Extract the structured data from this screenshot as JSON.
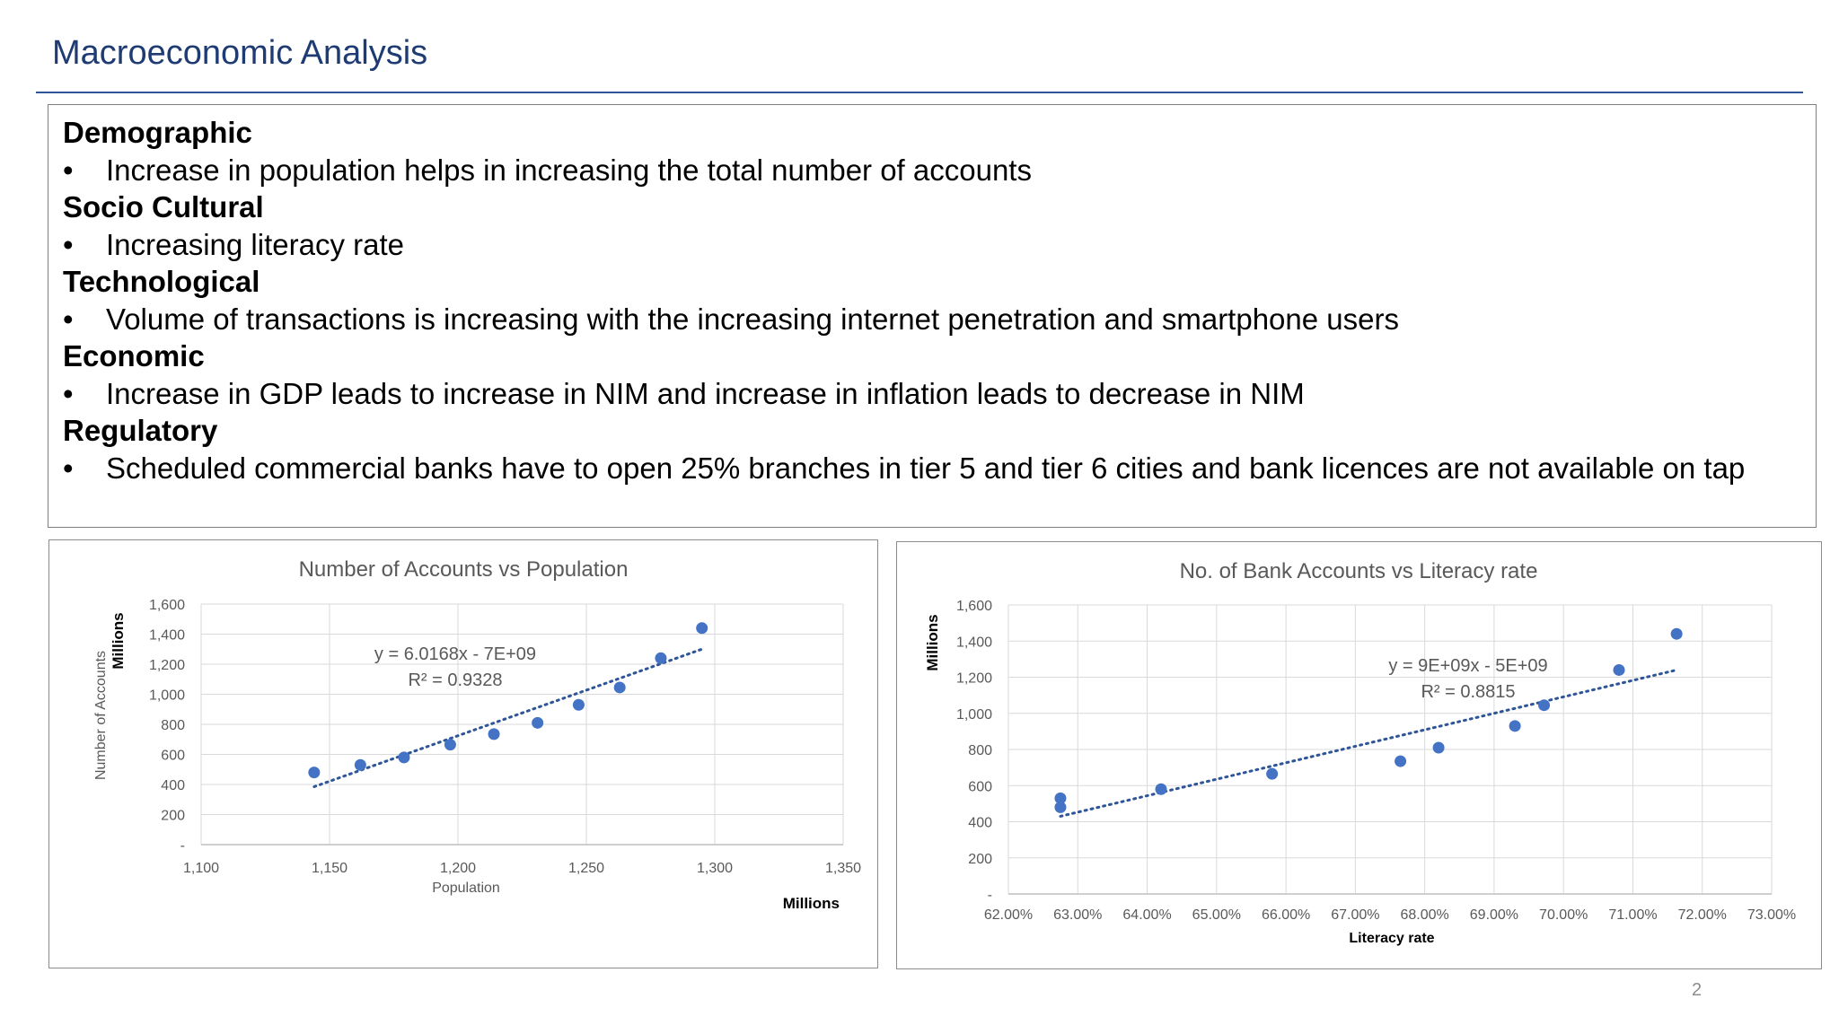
{
  "slide": {
    "title": "Macroeconomic Analysis",
    "page_number": "2",
    "accent_color": "#1f3b73",
    "marker_color": "#4472c4"
  },
  "sections": [
    {
      "heading": "Demographic",
      "bullet": "Increase in population helps in increasing the total number of accounts"
    },
    {
      "heading": "Socio Cultural",
      "bullet": "Increasing literacy rate"
    },
    {
      "heading": "Technological",
      "bullet": "Volume of transactions is increasing with the increasing internet penetration and smartphone users"
    },
    {
      "heading": "Economic",
      "bullet": "Increase in GDP leads to increase in NIM and increase in inflation leads to decrease in NIM"
    },
    {
      "heading": "Regulatory",
      "bullet": "Scheduled commercial banks have to open 25% branches in tier 5 and tier 6 cities and bank licences are not available on tap"
    }
  ],
  "bullet_symbol": "•",
  "chart_data": [
    {
      "type": "scatter",
      "title": "Number of Accounts vs Population",
      "xlabel": "Population",
      "xunit_label": "Millions",
      "ylabel": "Number of Accounts",
      "yunit_label": "Millions",
      "xlim": [
        1100,
        1350
      ],
      "ylim": [
        0,
        1600
      ],
      "xticks": [
        1100,
        1150,
        1200,
        1250,
        1300,
        1350
      ],
      "xtick_labels": [
        "1,100",
        "1,150",
        "1,200",
        "1,250",
        "1,300",
        "1,350"
      ],
      "yticks": [
        0,
        200,
        400,
        600,
        800,
        1000,
        1200,
        1400,
        1600
      ],
      "ytick_labels": [
        "-",
        "200",
        "400",
        "600",
        "800",
        "1,000",
        "1,200",
        "1,400",
        "1,600"
      ],
      "grid": true,
      "points": [
        {
          "x": 1144,
          "y": 480
        },
        {
          "x": 1162,
          "y": 530
        },
        {
          "x": 1179,
          "y": 580
        },
        {
          "x": 1197,
          "y": 665
        },
        {
          "x": 1214,
          "y": 735
        },
        {
          "x": 1231,
          "y": 810
        },
        {
          "x": 1247,
          "y": 930
        },
        {
          "x": 1263,
          "y": 1045
        },
        {
          "x": 1279,
          "y": 1240
        },
        {
          "x": 1295,
          "y": 1440
        }
      ],
      "trendline": {
        "x": [
          1144,
          1295
        ],
        "y": [
          385,
          1300
        ]
      },
      "equation": "y = 6.0168x - 7E+09",
      "r_squared": "R² = 0.9328"
    },
    {
      "type": "scatter",
      "title": "No. of Bank Accounts vs Literacy rate",
      "xlabel": "Literacy rate",
      "ylabel": "Millions",
      "xlim": [
        62,
        73
      ],
      "ylim": [
        0,
        1600
      ],
      "xticks": [
        62,
        63,
        64,
        65,
        66,
        67,
        68,
        69,
        70,
        71,
        72,
        73
      ],
      "xtick_labels": [
        "62.00%",
        "63.00%",
        "64.00%",
        "65.00%",
        "66.00%",
        "67.00%",
        "68.00%",
        "69.00%",
        "70.00%",
        "71.00%",
        "72.00%",
        "73.00%"
      ],
      "yticks": [
        0,
        200,
        400,
        600,
        800,
        1000,
        1200,
        1400,
        1600
      ],
      "ytick_labels": [
        "-",
        "200",
        "400",
        "600",
        "800",
        "1,000",
        "1,200",
        "1,400",
        "1,600"
      ],
      "grid": true,
      "points": [
        {
          "x": 62.75,
          "y": 480
        },
        {
          "x": 62.75,
          "y": 530
        },
        {
          "x": 64.2,
          "y": 580
        },
        {
          "x": 65.8,
          "y": 665
        },
        {
          "x": 67.65,
          "y": 735
        },
        {
          "x": 68.2,
          "y": 810
        },
        {
          "x": 69.3,
          "y": 930
        },
        {
          "x": 69.72,
          "y": 1045
        },
        {
          "x": 70.8,
          "y": 1240
        },
        {
          "x": 71.63,
          "y": 1440
        }
      ],
      "trendline": {
        "x": [
          62.75,
          71.63
        ],
        "y": [
          430,
          1240
        ]
      },
      "equation": "y = 9E+09x - 5E+09",
      "r_squared": "R² = 0.8815"
    }
  ]
}
